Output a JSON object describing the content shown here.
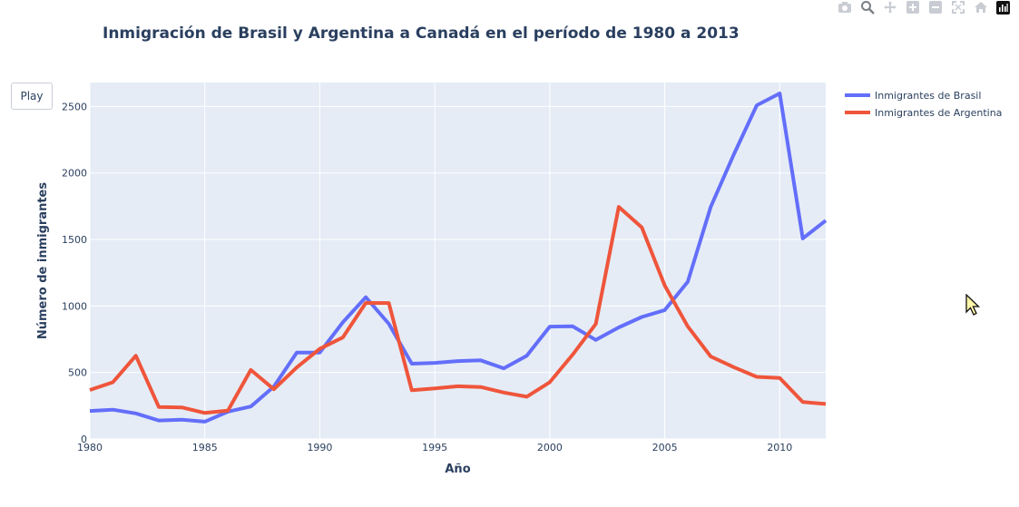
{
  "toolbar": {
    "play_label": "Play",
    "icons": [
      "camera-icon",
      "zoom-icon",
      "pan-icon",
      "zoom-in-icon",
      "zoom-out-icon",
      "autoscale-icon",
      "reset-axes-icon",
      "plotly-logo-icon"
    ]
  },
  "chart_data": {
    "type": "line",
    "title": "Inmigración de Brasil y Argentina a Canadá en el período de 1980 a 2013",
    "xlabel": "Año",
    "ylabel": "Número de inmigrantes",
    "xlim": [
      1980,
      2012
    ],
    "ylim": [
      0,
      2680
    ],
    "x_ticks": [
      1980,
      1985,
      1990,
      1995,
      2000,
      2005,
      2010
    ],
    "y_ticks": [
      0,
      500,
      1000,
      1500,
      2000,
      2500
    ],
    "grid": true,
    "legend_position": "top-right",
    "x": [
      1980,
      1981,
      1982,
      1983,
      1984,
      1985,
      1986,
      1987,
      1988,
      1989,
      1990,
      1991,
      1992,
      1993,
      1994,
      1995,
      1996,
      1997,
      1998,
      1999,
      2000,
      2001,
      2002,
      2003,
      2004,
      2005,
      2006,
      2007,
      2008,
      2009,
      2010,
      2011,
      2012
    ],
    "series": [
      {
        "name": "Inmigrantes de Brasil",
        "color": "#636efa",
        "values": [
          211,
          220,
          192,
          139,
          145,
          130,
          205,
          244,
          394,
          650,
          650,
          877,
          1066,
          866,
          566,
          572,
          586,
          591,
          531,
          626,
          845,
          847,
          745,
          839,
          917,
          969,
          1181,
          1746,
          2138,
          2509,
          2598,
          1508,
          1642
        ]
      },
      {
        "name": "Inmigrantes de Argentina",
        "color": "#ef553b",
        "values": [
          368,
          426,
          626,
          241,
          237,
          196,
          213,
          519,
          374,
          538,
          678,
          763,
          1023,
          1022,
          366,
          380,
          396,
          391,
          349,
          318,
          427,
          635,
          865,
          1745,
          1591,
          1153,
          847,
          620,
          540,
          467,
          459,
          278,
          263
        ]
      }
    ]
  }
}
